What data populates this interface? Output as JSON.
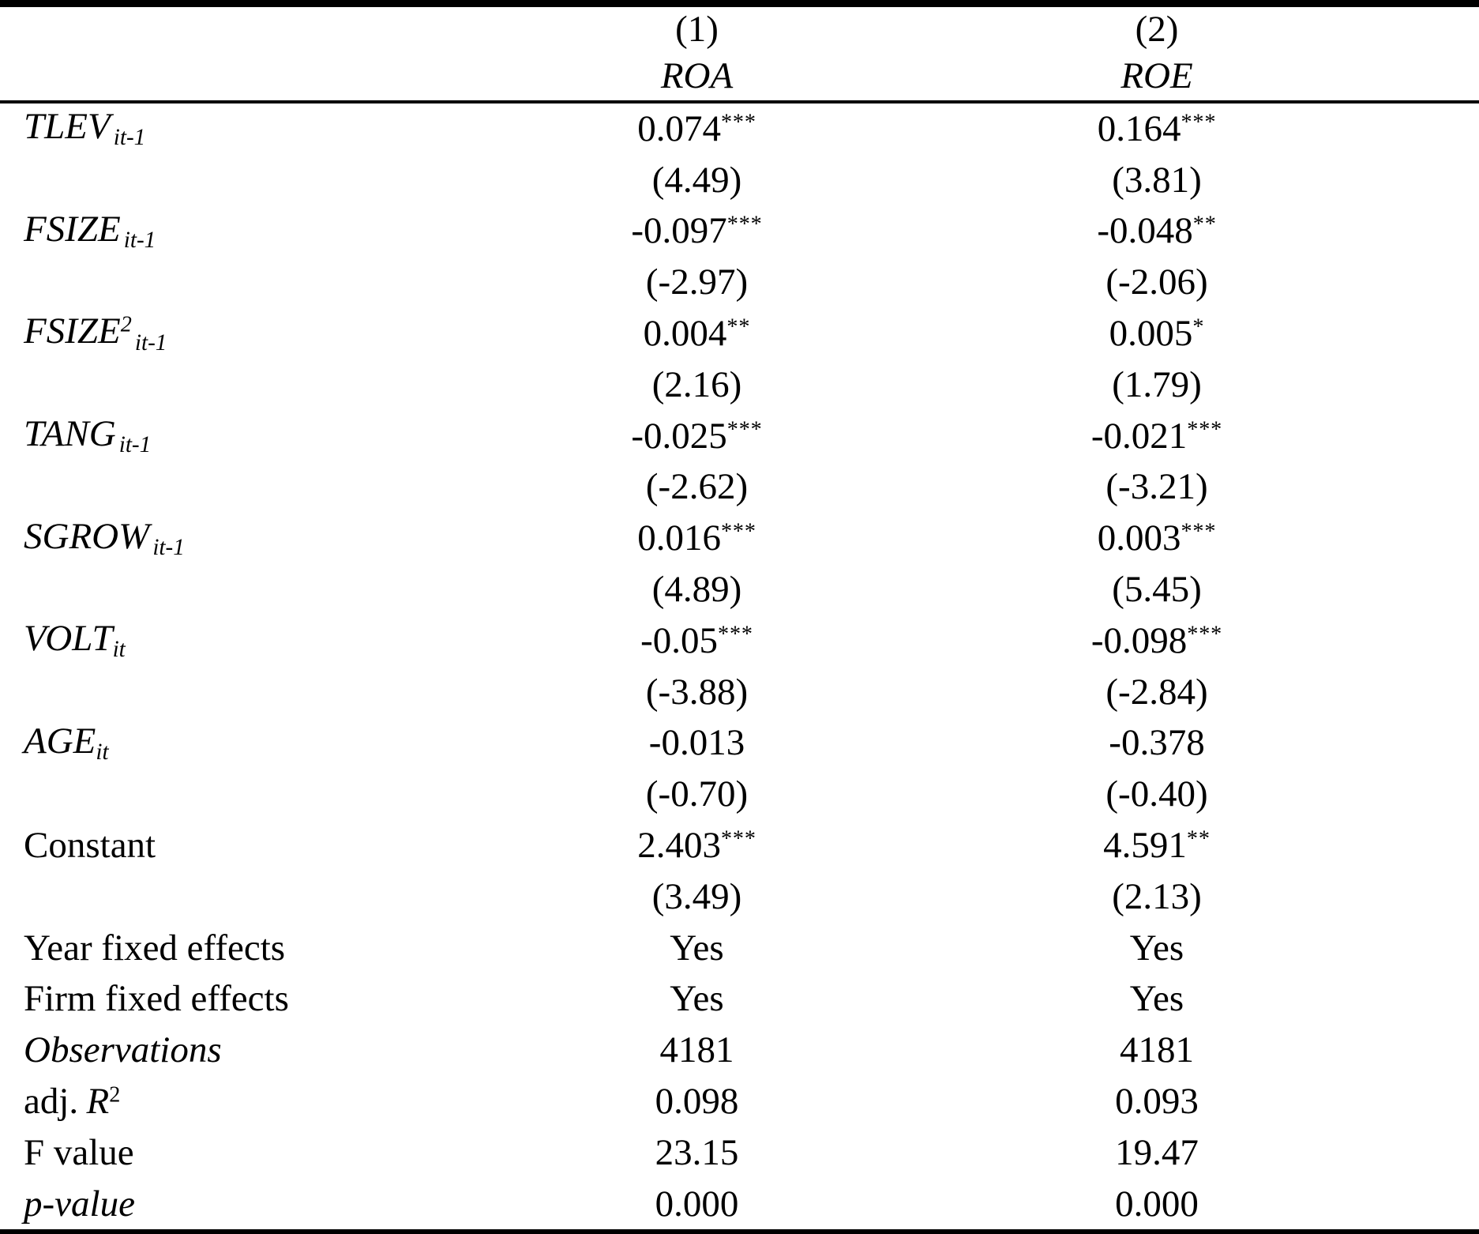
{
  "columns": [
    {
      "number": "(1)",
      "name": "ROA"
    },
    {
      "number": "(2)",
      "name": "ROE"
    }
  ],
  "rows": [
    {
      "label": "TLEV",
      "sub": "it-1",
      "c1": "0.074",
      "s1": "***",
      "t1": "(4.49)",
      "c2": "0.164",
      "s2": "***",
      "t2": "(3.81)"
    },
    {
      "label": "FSIZE",
      "sub": "it-1",
      "c1": "-0.097",
      "s1": "***",
      "t1": "(-2.97)",
      "c2": "-0.048",
      "s2": "**",
      "t2": "(-2.06)"
    },
    {
      "label": "FSIZE",
      "sup": "2",
      "sub": "it-1",
      "c1": "0.004",
      "s1": "**",
      "t1": "(2.16)",
      "c2": "0.005",
      "s2": "*",
      "t2": "(1.79)"
    },
    {
      "label": "TANG",
      "sub": "it-1",
      "c1": "-0.025",
      "s1": "***",
      "t1": "(-2.62)",
      "c2": "-0.021",
      "s2": "***",
      "t2": "(-3.21)"
    },
    {
      "label": "SGROW",
      "sub": "it-1",
      "c1": "0.016",
      "s1": "***",
      "t1": "(4.89)",
      "c2": "0.003",
      "s2": "***",
      "t2": "(5.45)"
    },
    {
      "label": "VOLT",
      "sub": "it",
      "c1": "-0.05",
      "s1": "***",
      "t1": "(-3.88)",
      "c2": "-0.098",
      "s2": "***",
      "t2": "(-2.84)"
    },
    {
      "label": "AGE",
      "sub": "it",
      "c1": "-0.013",
      "s1": "",
      "t1": "(-0.70)",
      "c2": "-0.378",
      "s2": "",
      "t2": "(-0.40)"
    },
    {
      "label": "Constant",
      "sub": "",
      "c1": "2.403",
      "s1": "***",
      "t1": "(3.49)",
      "c2": "4.591",
      "s2": "**",
      "t2": "(2.13)"
    }
  ],
  "summary": [
    {
      "label": "Year fixed effects",
      "c1": "Yes",
      "c2": "Yes"
    },
    {
      "label": "Firm fixed effects",
      "c1": "Yes",
      "c2": "Yes"
    },
    {
      "label": "Observations",
      "c1": "4181",
      "c2": "4181"
    },
    {
      "label_prefix": "adj.",
      "label": "R",
      "sup": "2",
      "c1": "0.098",
      "c2": "0.093"
    },
    {
      "label": "F value",
      "c1": "23.15",
      "c2": "19.47"
    },
    {
      "label": "p-value",
      "c1": "0.000",
      "c2": "0.000"
    }
  ]
}
